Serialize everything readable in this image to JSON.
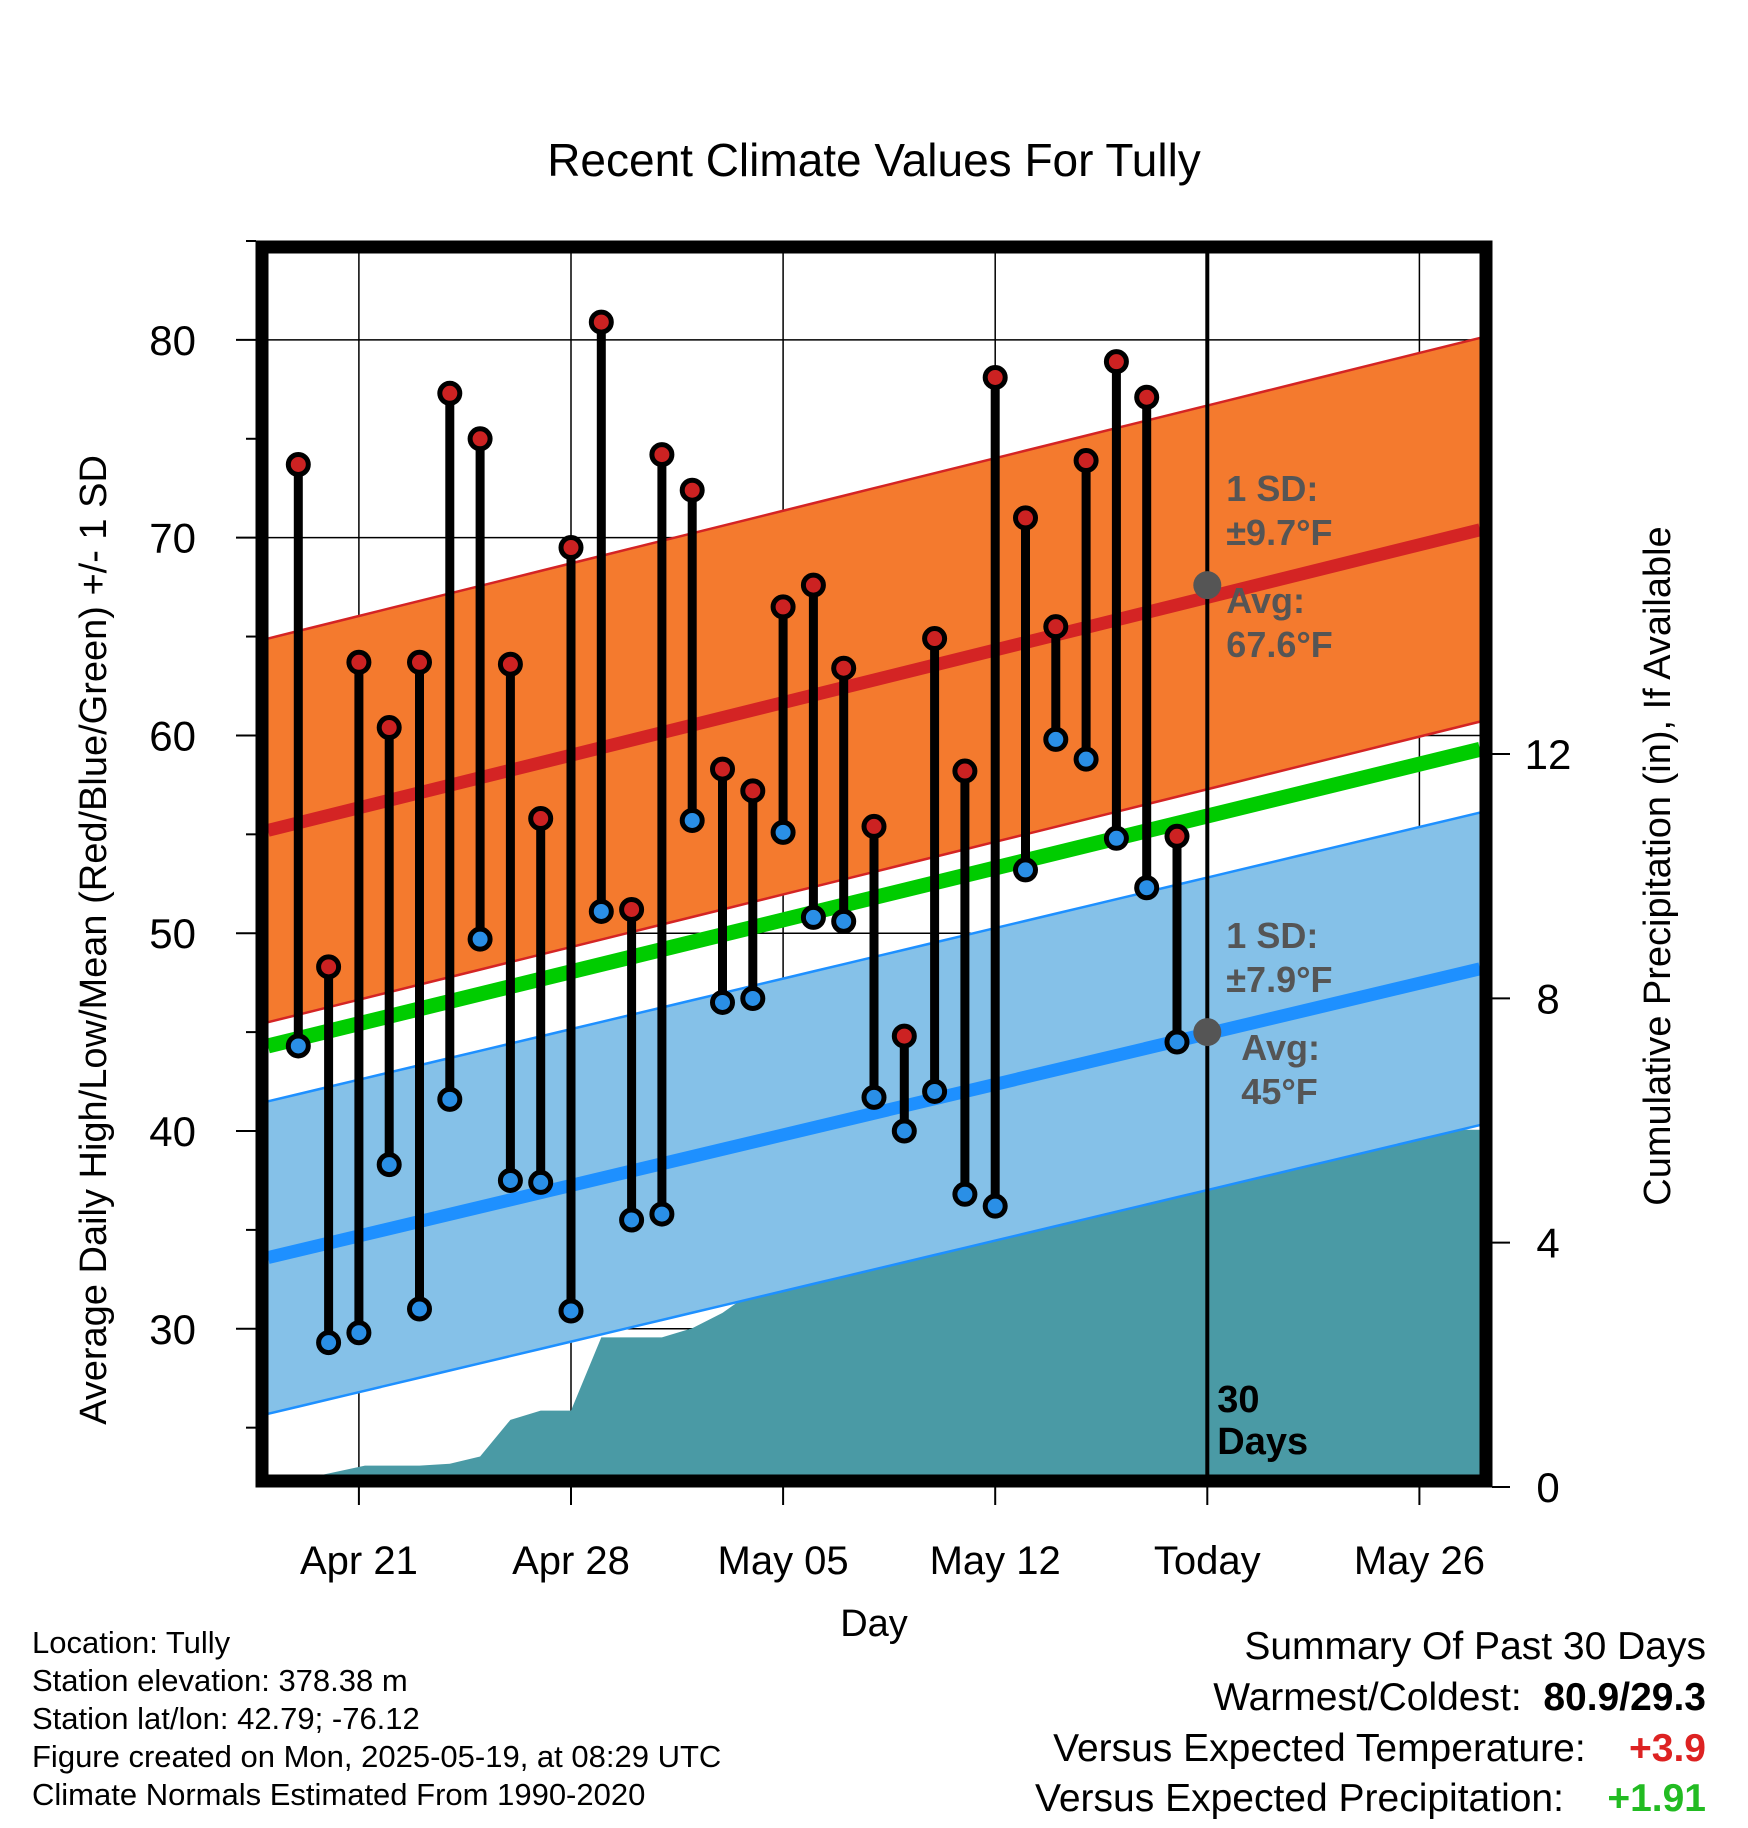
{
  "colors": {
    "high_band": "#f47a2e",
    "high_line": "#d42424",
    "low_band": "#85c1e8",
    "low_line": "#1e90ff",
    "mean_line": "#00cc00",
    "precip_fill": "#4a9aa5",
    "high_dot": "#cc2222",
    "low_dot": "#2a8fe6",
    "avg_marker": "#555555",
    "sd_text": "#555555",
    "positive_temp": "#dd2222",
    "positive_precip": "#22bb22"
  },
  "chart_data": {
    "type": "line",
    "title": "Recent Climate Values For Tully",
    "xlabel": "Day",
    "ylabel": "Average Daily High/Low/Mean (Red/Blue/Green) +/- 1 SD",
    "y2label": "Cumulative Precipitation (in), If Available",
    "x_tick_labels": [
      "Apr 21",
      "Apr 28",
      "May 05",
      "May 12",
      "Today",
      "May 26"
    ],
    "x_tick_days": [
      3,
      10,
      17,
      24,
      31,
      38
    ],
    "x_range_days": [
      0,
      40
    ],
    "ylim": [
      22,
      85
    ],
    "y_ticks": [
      30,
      40,
      50,
      60,
      70,
      80
    ],
    "y2lim": [
      0,
      20.4
    ],
    "y2_ticks": [
      0,
      4,
      8,
      12
    ],
    "today_day": 31,
    "today_label": "30\nDays",
    "days": [
      1,
      2,
      3,
      4,
      5,
      6,
      7,
      8,
      9,
      10,
      11,
      12,
      13,
      14,
      15,
      16,
      17,
      18,
      19,
      20,
      21,
      22,
      23,
      24,
      25,
      26,
      27,
      28,
      29,
      30
    ],
    "highs": [
      73.7,
      48.3,
      63.7,
      60.4,
      63.7,
      77.3,
      75.0,
      63.6,
      55.8,
      69.5,
      80.9,
      51.2,
      74.2,
      72.4,
      58.3,
      57.2,
      66.5,
      67.6,
      63.4,
      55.4,
      44.8,
      64.9,
      58.2,
      78.1,
      71.0,
      65.5,
      73.9,
      78.9,
      77.1,
      54.9
    ],
    "lows": [
      44.3,
      29.3,
      29.8,
      38.3,
      31.0,
      41.6,
      49.7,
      37.5,
      37.4,
      30.9,
      51.1,
      35.5,
      35.8,
      55.7,
      46.5,
      46.7,
      55.1,
      50.8,
      50.6,
      41.7,
      40.0,
      42.0,
      36.8,
      36.2,
      53.2,
      59.8,
      58.8,
      54.8,
      52.3,
      44.5
    ],
    "normal_high": {
      "start_day": 0,
      "end_day": 40,
      "start": 55.2,
      "end": 70.4
    },
    "normal_low": {
      "start_day": 0,
      "end_day": 40,
      "start": 33.6,
      "end": 48.2
    },
    "normal_mean": {
      "start_day": 0,
      "end_day": 40,
      "start": 44.3,
      "end": 59.3
    },
    "high_sd": 9.7,
    "low_sd": 7.9,
    "precip_series": {
      "x": [
        0,
        0.5,
        1.8,
        3.2,
        5.0,
        6.0,
        7.0,
        8.0,
        9.0,
        10.0,
        11.0,
        12.0,
        13.0,
        14.0,
        15.0,
        16.0,
        17.0,
        18.0,
        19.0,
        20.0,
        21.0,
        22.0,
        23.0,
        24.0,
        25.0,
        26.0,
        27.0,
        28.0,
        29.0,
        30.0,
        31.0,
        40.0
      ],
      "values": [
        0,
        0.2,
        0.2,
        0.35,
        0.35,
        0.38,
        0.5,
        1.1,
        1.25,
        1.25,
        2.45,
        2.45,
        2.45,
        2.6,
        2.85,
        3.2,
        3.4,
        4.65,
        5.15,
        5.2,
        5.5,
        5.5,
        5.5,
        5.5,
        5.55,
        5.55,
        5.55,
        5.6,
        5.75,
        5.85,
        5.85,
        5.85
      ]
    },
    "high_annotation": {
      "sd_label": "1 SD:",
      "sd_value": "±9.7°F",
      "avg_label": "Avg:",
      "avg_value": "67.6°F",
      "avg": 67.6
    },
    "low_annotation": {
      "sd_label": "1 SD:",
      "sd_value": "±7.9°F",
      "avg_label": "Avg:",
      "avg_value": "45°F",
      "avg": 45
    }
  },
  "info": {
    "location": "Location: Tully",
    "elevation": "Station elevation: 378.38 m",
    "latlon": "Station lat/lon: 42.79; -76.12",
    "created": "Figure created on Mon, 2025-05-19, at 08:29 UTC",
    "normals": "Climate Normals Estimated From 1990-2020"
  },
  "summary": {
    "heading": "Summary Of Past 30 Days",
    "warmest_label": "Warmest/Coldest:",
    "warmest_value": "80.9/29.3",
    "temp_label": "Versus Expected Temperature:",
    "temp_value": "+3.9",
    "precip_label": "Versus Expected Precipitation:",
    "precip_value": "+1.91"
  }
}
